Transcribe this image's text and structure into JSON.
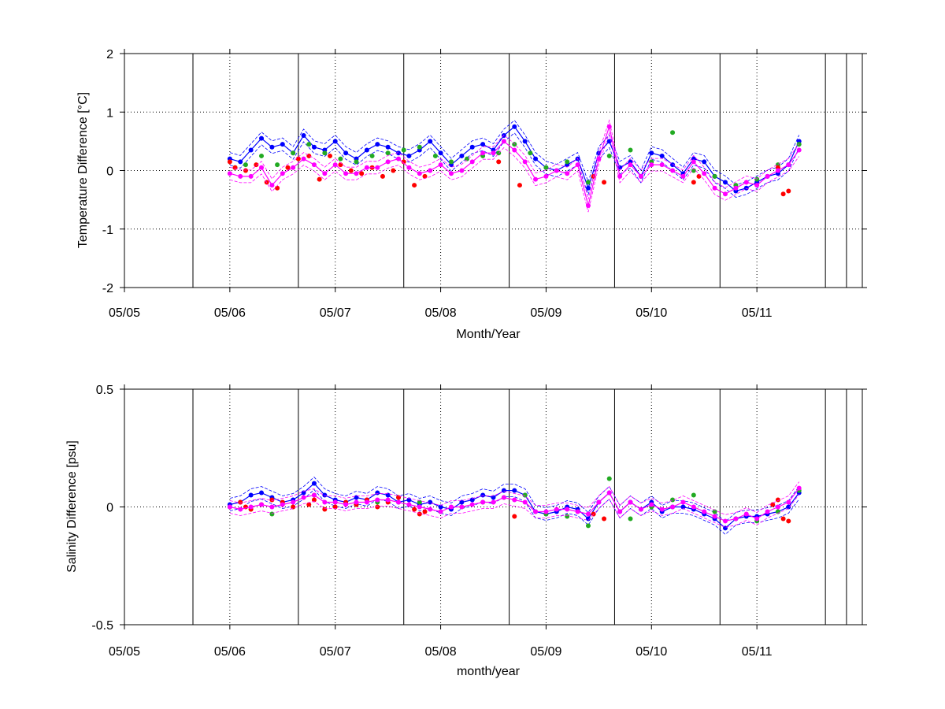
{
  "chart_data": [
    {
      "type": "line",
      "ylabel": "Temperature Difference [°C]",
      "xlabel": "Month/Year",
      "xlim": [
        0,
        7
      ],
      "ylim": [
        -2,
        2
      ],
      "x_ticks": [
        0,
        1,
        2,
        3,
        4,
        5,
        6
      ],
      "x_tick_labels": [
        "05/05",
        "05/06",
        "05/07",
        "05/08",
        "05/09",
        "05/10",
        "05/11"
      ],
      "y_ticks": [
        -2,
        -1,
        0,
        1,
        2
      ],
      "y_tick_labels": [
        "-2",
        "-1",
        "0",
        "1",
        "2"
      ],
      "vertical_lines": [
        0.65,
        1.65,
        2.65,
        3.65,
        4.65,
        5.65,
        6.65,
        6.85
      ],
      "grid": "dotted",
      "colors": {
        "blue": "#0000ff",
        "green": "#22aa22",
        "red": "#ff0000",
        "magenta": "#ff00ff"
      },
      "series": [
        {
          "color": "blue",
          "style": "line-markers",
          "x": [
            1.0,
            1.1,
            1.2,
            1.3,
            1.4,
            1.5,
            1.6,
            1.7,
            1.8,
            1.9,
            2.0,
            2.1,
            2.2,
            2.3,
            2.4,
            2.5,
            2.6,
            2.7,
            2.8,
            2.9,
            3.0,
            3.1,
            3.2,
            3.3,
            3.4,
            3.5,
            3.6,
            3.7,
            3.8,
            3.9,
            4.0,
            4.1,
            4.2,
            4.3,
            4.4,
            4.5,
            4.6,
            4.7,
            4.8,
            4.9,
            5.0,
            5.1,
            5.2,
            5.3,
            5.4,
            5.5,
            5.6,
            5.7,
            5.8,
            5.9,
            6.0,
            6.1,
            6.2,
            6.3,
            6.4
          ],
          "y": [
            0.2,
            0.15,
            0.35,
            0.55,
            0.4,
            0.45,
            0.3,
            0.6,
            0.4,
            0.35,
            0.5,
            0.3,
            0.2,
            0.35,
            0.45,
            0.4,
            0.3,
            0.25,
            0.35,
            0.5,
            0.3,
            0.1,
            0.25,
            0.4,
            0.45,
            0.35,
            0.6,
            0.75,
            0.5,
            0.2,
            0.05,
            0.0,
            0.1,
            0.2,
            -0.3,
            0.3,
            0.5,
            0.05,
            0.15,
            -0.1,
            0.3,
            0.25,
            0.1,
            -0.05,
            0.2,
            0.15,
            -0.1,
            -0.2,
            -0.35,
            -0.3,
            -0.2,
            -0.1,
            -0.05,
            0.1,
            0.5
          ]
        },
        {
          "color": "green",
          "style": "markers",
          "x": [
            1.05,
            1.15,
            1.3,
            1.45,
            1.6,
            1.75,
            1.9,
            2.05,
            2.2,
            2.35,
            2.5,
            2.65,
            2.8,
            2.95,
            3.1,
            3.25,
            3.4,
            3.55,
            3.7,
            3.85,
            4.0,
            4.2,
            4.4,
            4.6,
            4.8,
            5.0,
            5.2,
            5.4,
            5.6,
            5.8,
            6.0,
            6.2,
            6.4
          ],
          "y": [
            0.05,
            0.1,
            0.25,
            0.1,
            0.3,
            0.45,
            0.3,
            0.2,
            0.15,
            0.25,
            0.3,
            0.35,
            0.4,
            0.25,
            0.15,
            0.2,
            0.25,
            0.3,
            0.45,
            0.3,
            0.05,
            0.15,
            -0.2,
            0.25,
            0.35,
            0.15,
            0.65,
            0.0,
            -0.1,
            -0.25,
            -0.15,
            0.1,
            0.45
          ]
        },
        {
          "color": "red",
          "style": "markers",
          "x": [
            1.0,
            1.05,
            1.15,
            1.25,
            1.35,
            1.45,
            1.55,
            1.65,
            1.75,
            1.85,
            1.95,
            2.05,
            2.15,
            2.25,
            2.35,
            2.45,
            2.55,
            2.65,
            2.75,
            2.85,
            3.55,
            3.75,
            4.45,
            4.55,
            5.4,
            5.45,
            6.2,
            6.25,
            6.3
          ],
          "y": [
            0.15,
            0.05,
            0.0,
            0.1,
            -0.2,
            -0.3,
            0.05,
            0.2,
            0.25,
            -0.15,
            0.25,
            0.1,
            0.0,
            -0.05,
            0.05,
            -0.1,
            0.0,
            0.15,
            -0.25,
            -0.1,
            0.15,
            -0.25,
            -0.1,
            -0.2,
            -0.2,
            -0.1,
            0.05,
            -0.4,
            -0.35
          ]
        },
        {
          "color": "magenta",
          "style": "line-markers",
          "x": [
            1.0,
            1.1,
            1.2,
            1.3,
            1.4,
            1.5,
            1.6,
            1.7,
            1.8,
            1.9,
            2.0,
            2.1,
            2.2,
            2.3,
            2.4,
            2.5,
            2.6,
            2.7,
            2.8,
            2.9,
            3.0,
            3.1,
            3.2,
            3.3,
            3.4,
            3.5,
            3.6,
            3.7,
            3.8,
            3.9,
            4.0,
            4.1,
            4.2,
            4.3,
            4.4,
            4.5,
            4.6,
            4.7,
            4.8,
            4.9,
            5.0,
            5.1,
            5.2,
            5.3,
            5.4,
            5.5,
            5.6,
            5.7,
            5.8,
            5.9,
            6.0,
            6.1,
            6.2,
            6.3,
            6.4
          ],
          "y": [
            -0.05,
            -0.1,
            -0.1,
            0.05,
            -0.25,
            -0.05,
            0.05,
            0.2,
            0.1,
            -0.05,
            0.1,
            -0.05,
            -0.05,
            0.05,
            0.05,
            0.15,
            0.2,
            0.05,
            -0.05,
            0.0,
            0.1,
            -0.05,
            0.0,
            0.15,
            0.3,
            0.3,
            0.5,
            0.35,
            0.15,
            -0.15,
            -0.1,
            0.0,
            -0.05,
            0.1,
            -0.6,
            0.2,
            0.75,
            -0.1,
            0.1,
            -0.1,
            0.1,
            0.1,
            0.0,
            -0.1,
            0.15,
            -0.05,
            -0.3,
            -0.4,
            -0.3,
            -0.2,
            -0.25,
            -0.1,
            0.0,
            0.1,
            0.35
          ]
        }
      ]
    },
    {
      "type": "line",
      "ylabel": "Salinity Difference [psu]",
      "xlabel": "month/year",
      "xlim": [
        0,
        7
      ],
      "ylim": [
        -0.5,
        0.5
      ],
      "x_ticks": [
        0,
        1,
        2,
        3,
        4,
        5,
        6
      ],
      "x_tick_labels": [
        "05/05",
        "05/06",
        "05/07",
        "05/08",
        "05/09",
        "05/10",
        "05/11"
      ],
      "y_ticks": [
        -0.5,
        0,
        0.5
      ],
      "y_tick_labels": [
        "-0.5",
        "0",
        "0.5"
      ],
      "vertical_lines": [
        0.65,
        1.65,
        2.65,
        3.65,
        4.65,
        5.65,
        6.65,
        6.85
      ],
      "grid": "dotted",
      "colors": {
        "blue": "#0000ff",
        "green": "#22aa22",
        "red": "#ff0000",
        "magenta": "#ff00ff"
      },
      "series": [
        {
          "color": "blue",
          "style": "line-markers",
          "x": [
            1.0,
            1.1,
            1.2,
            1.3,
            1.4,
            1.5,
            1.6,
            1.7,
            1.8,
            1.9,
            2.0,
            2.1,
            2.2,
            2.3,
            2.4,
            2.5,
            2.6,
            2.7,
            2.8,
            2.9,
            3.0,
            3.1,
            3.2,
            3.3,
            3.4,
            3.5,
            3.6,
            3.7,
            3.8,
            3.9,
            4.0,
            4.1,
            4.2,
            4.3,
            4.4,
            4.5,
            4.6,
            4.7,
            4.8,
            4.9,
            5.0,
            5.1,
            5.2,
            5.3,
            5.4,
            5.5,
            5.6,
            5.7,
            5.8,
            5.9,
            6.0,
            6.1,
            6.2,
            6.3,
            6.4
          ],
          "y": [
            0.01,
            0.02,
            0.05,
            0.06,
            0.04,
            0.02,
            0.03,
            0.06,
            0.1,
            0.05,
            0.03,
            0.02,
            0.04,
            0.03,
            0.06,
            0.05,
            0.02,
            0.03,
            0.01,
            0.02,
            0.0,
            -0.01,
            0.02,
            0.03,
            0.05,
            0.04,
            0.07,
            0.07,
            0.05,
            -0.02,
            -0.03,
            -0.02,
            0.0,
            -0.01,
            -0.05,
            0.02,
            0.06,
            -0.02,
            0.02,
            -0.01,
            0.02,
            -0.02,
            0.0,
            0.0,
            -0.01,
            -0.03,
            -0.05,
            -0.09,
            -0.05,
            -0.04,
            -0.04,
            -0.03,
            -0.02,
            0.0,
            0.06
          ]
        },
        {
          "color": "green",
          "style": "markers",
          "x": [
            1.0,
            1.2,
            1.4,
            1.6,
            1.8,
            2.0,
            2.2,
            2.4,
            2.6,
            2.8,
            3.0,
            3.2,
            3.4,
            3.6,
            3.8,
            4.0,
            4.2,
            4.4,
            4.6,
            4.8,
            5.0,
            5.2,
            5.4,
            5.6,
            5.8,
            6.0,
            6.2,
            6.4
          ],
          "y": [
            0.0,
            -0.01,
            -0.03,
            0.0,
            0.05,
            0.02,
            0.01,
            0.02,
            0.04,
            0.02,
            -0.02,
            0.0,
            0.02,
            0.04,
            0.05,
            -0.03,
            -0.04,
            -0.08,
            0.12,
            -0.05,
            0.0,
            0.03,
            0.05,
            -0.02,
            -0.05,
            -0.06,
            -0.02,
            0.07
          ]
        },
        {
          "color": "red",
          "style": "markers",
          "x": [
            1.1,
            1.15,
            1.2,
            1.3,
            1.4,
            1.5,
            1.6,
            1.75,
            1.8,
            1.9,
            2.0,
            2.1,
            2.2,
            2.3,
            2.4,
            2.5,
            2.6,
            2.75,
            2.8,
            2.85,
            3.7,
            4.45,
            4.55,
            6.15,
            6.2,
            6.25,
            6.3
          ],
          "y": [
            0.02,
            0.0,
            -0.01,
            0.01,
            0.03,
            0.02,
            0.0,
            0.01,
            0.03,
            -0.01,
            0.0,
            0.02,
            0.01,
            0.03,
            0.0,
            0.02,
            0.04,
            -0.01,
            -0.03,
            -0.02,
            -0.04,
            -0.03,
            -0.05,
            0.01,
            0.03,
            -0.05,
            -0.06
          ]
        },
        {
          "color": "magenta",
          "style": "line-markers",
          "x": [
            1.0,
            1.1,
            1.2,
            1.3,
            1.4,
            1.5,
            1.6,
            1.7,
            1.8,
            1.9,
            2.0,
            2.1,
            2.2,
            2.3,
            2.4,
            2.5,
            2.6,
            2.7,
            2.8,
            2.9,
            3.0,
            3.1,
            3.2,
            3.3,
            3.4,
            3.5,
            3.6,
            3.7,
            3.8,
            3.9,
            4.0,
            4.1,
            4.2,
            4.3,
            4.4,
            4.5,
            4.6,
            4.7,
            4.8,
            4.9,
            5.0,
            5.1,
            5.2,
            5.3,
            5.4,
            5.5,
            5.6,
            5.7,
            5.8,
            5.9,
            6.0,
            6.1,
            6.2,
            6.3,
            6.4
          ],
          "y": [
            0.0,
            -0.01,
            0.0,
            0.01,
            0.0,
            0.01,
            0.02,
            0.04,
            0.05,
            0.02,
            0.02,
            0.01,
            0.02,
            0.02,
            0.03,
            0.03,
            0.02,
            0.01,
            0.0,
            -0.01,
            -0.02,
            0.0,
            0.0,
            0.01,
            0.02,
            0.02,
            0.04,
            0.03,
            0.02,
            -0.02,
            -0.02,
            -0.01,
            -0.01,
            -0.02,
            -0.03,
            0.02,
            0.06,
            -0.02,
            0.02,
            -0.01,
            0.01,
            -0.01,
            0.0,
            0.02,
            0.0,
            -0.02,
            -0.04,
            -0.06,
            -0.05,
            -0.03,
            -0.05,
            -0.02,
            0.0,
            0.02,
            0.08
          ]
        }
      ]
    }
  ]
}
